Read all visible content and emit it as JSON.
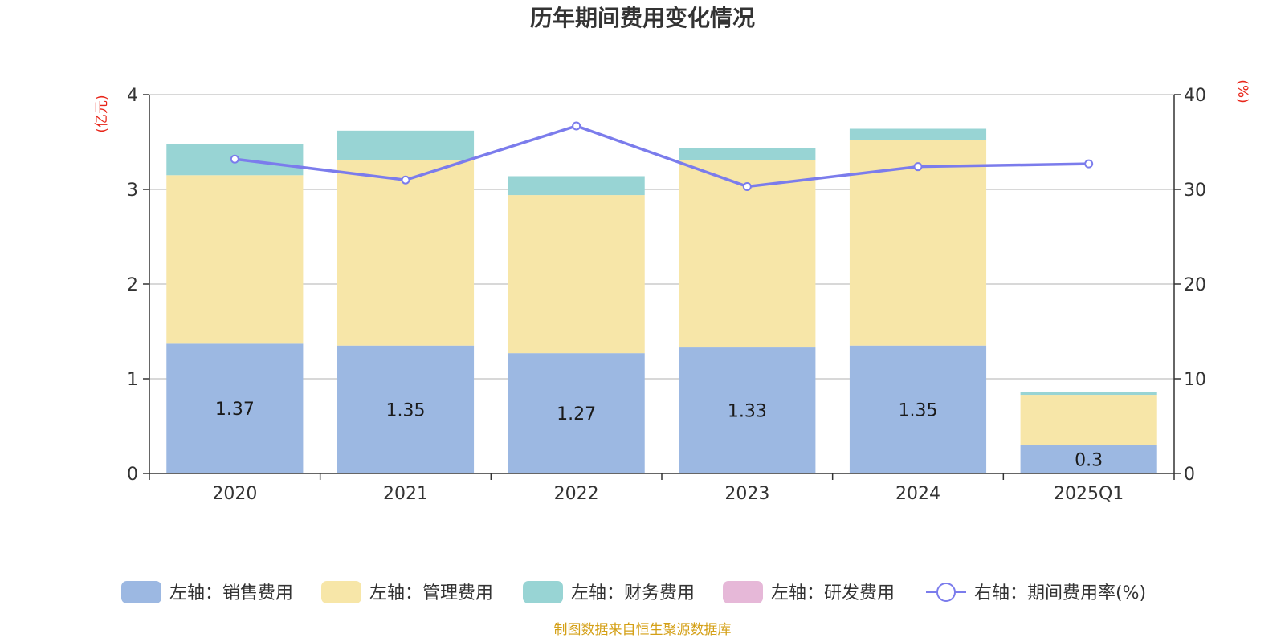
{
  "chart_data": {
    "type": "bar",
    "stacked": true,
    "title": "历年期间费用变化情况",
    "categories": [
      "2020",
      "2021",
      "2022",
      "2023",
      "2024",
      "2025Q1"
    ],
    "left_axis": {
      "unit_label": "(亿元)",
      "ylim": [
        0,
        4
      ],
      "ticks": [
        "0",
        "1",
        "2",
        "3",
        "4"
      ]
    },
    "right_axis": {
      "unit_label": "(%)",
      "ylim": [
        0,
        40
      ],
      "ticks": [
        "0",
        "10",
        "20",
        "30",
        "40"
      ]
    },
    "series": [
      {
        "name": "左轴：销售费用",
        "kind": "bar",
        "axis": "left",
        "color": "#9cb8e2",
        "values": [
          1.37,
          1.35,
          1.27,
          1.33,
          1.35,
          0.3
        ],
        "data_labels": [
          "1.37",
          "1.35",
          "1.27",
          "1.33",
          "1.35",
          "0.3"
        ]
      },
      {
        "name": "左轴：管理费用",
        "kind": "bar",
        "axis": "left",
        "color": "#f7e6a8",
        "values": [
          1.78,
          1.96,
          1.67,
          1.98,
          2.17,
          0.53
        ]
      },
      {
        "name": "左轴：财务费用",
        "kind": "bar",
        "axis": "left",
        "color": "#98d4d4",
        "values": [
          0.33,
          0.31,
          0.2,
          0.13,
          0.12,
          0.03
        ]
      },
      {
        "name": "左轴：研发费用",
        "kind": "bar",
        "axis": "left",
        "color": "#e6b8d8",
        "values": [
          0,
          0,
          0,
          0,
          0,
          0
        ]
      },
      {
        "name": "右轴：期间费用率(%)",
        "kind": "line",
        "axis": "right",
        "color": "#7b7cec",
        "values": [
          33.2,
          31.0,
          36.7,
          30.3,
          32.4,
          32.7
        ]
      }
    ],
    "grid": true,
    "legend_position": "bottom-center"
  },
  "source_note": "制图数据来自恒生聚源数据库",
  "colors": {
    "axis": "#333333",
    "grid": "#cccccc",
    "unit_label": "#e8261a",
    "source": "#d4a017"
  }
}
